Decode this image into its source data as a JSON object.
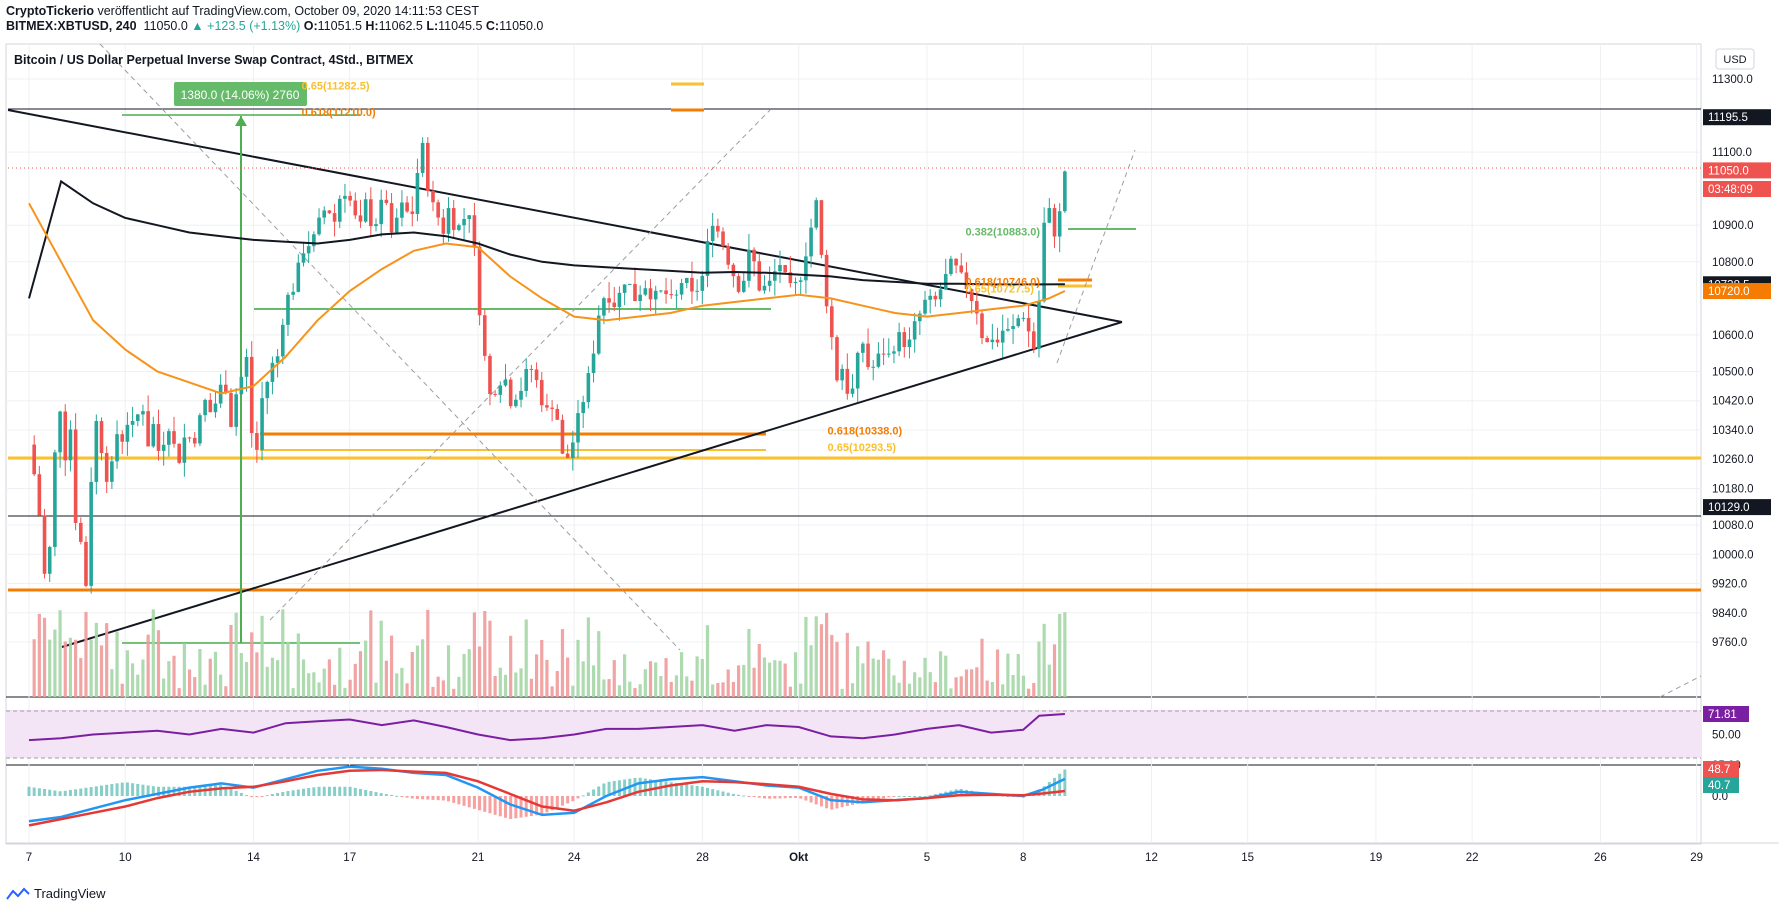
{
  "header": {
    "publisher": "CryptoTickerio",
    "published_text": "veröffentlicht auf TradingView.com, October 09, 2020 14:11:53 CEST",
    "symbol": "BITMEX:XBTUSD, 240",
    "last": "11050.0",
    "change": "▲ +123.5 (+1.13%)",
    "o_label": "O:",
    "o": "11051.5",
    "h_label": "H:",
    "h": "11062.5",
    "l_label": "L:",
    "l": "11045.5",
    "c_label": "C:",
    "c": "11050.0"
  },
  "chart_title": "Bitcoin / US Dollar Perpetual Inverse Swap Contract, 4Std., BITMEX",
  "currency_button": "USD",
  "footer_brand": "TradingView",
  "colors": {
    "up": "#26a69a",
    "down": "#ef5350",
    "ma_black": "#131722",
    "ma_orange": "#f7931a",
    "fib_orange": "#f57c00",
    "fib_yellow": "#fbc02d",
    "fib_green": "#66bb6a",
    "rsi": "#7b1fa2",
    "macd": "#2196f3",
    "signal": "#e53935"
  },
  "chart_data": {
    "type": "candlestick",
    "title": "Bitcoin / US Dollar Perpetual Inverse Swap Contract, 4Std., BITMEX",
    "x_tick_labels": [
      "7",
      "10",
      "14",
      "17",
      "21",
      "24",
      "28",
      "Okt",
      "5",
      "8",
      "12",
      "15",
      "19",
      "22",
      "26",
      "29"
    ],
    "y_tick_labels": [
      "11300.0",
      "11100.0",
      "10900.0",
      "10800.0",
      "10600.0",
      "10500.0",
      "10420.0",
      "10340.0",
      "10260.0",
      "10180.0",
      "10080.0",
      "10000.0",
      "9920.0",
      "9840.0",
      "9760.0"
    ],
    "y_ticks": [
      11300,
      11100,
      10900,
      10800,
      10600,
      10500,
      10420,
      10340,
      10260,
      10180,
      10080,
      10000,
      9920,
      9840,
      9760
    ],
    "price_badges": [
      {
        "label": "11195.5",
        "value": 11195.5,
        "bg": "#131722"
      },
      {
        "label": "11050.0",
        "value": 11050.0,
        "bg": "#ef5350"
      },
      {
        "label": "03:48:09",
        "value": 11000,
        "bg": "#ef5350"
      },
      {
        "label": "10738.5",
        "value": 10738.5,
        "bg": "#131722"
      },
      {
        "label": "10720.0",
        "value": 10720.0,
        "bg": "#f57c00"
      },
      {
        "label": "10129.0",
        "value": 10129.0,
        "bg": "#131722"
      }
    ],
    "price_path": [
      [
        7,
        10300
      ],
      [
        7.2,
        10200
      ],
      [
        7.4,
        10050
      ],
      [
        7.55,
        9860
      ],
      [
        7.7,
        10100
      ],
      [
        7.85,
        10340
      ],
      [
        8.0,
        10420
      ],
      [
        8.15,
        10250
      ],
      [
        8.3,
        10350
      ],
      [
        8.45,
        10100
      ],
      [
        8.6,
        10050
      ],
      [
        8.75,
        9870
      ],
      [
        8.9,
        10150
      ],
      [
        9.05,
        10380
      ],
      [
        9.2,
        10320
      ],
      [
        9.35,
        10250
      ],
      [
        9.5,
        10180
      ],
      [
        9.65,
        10280
      ],
      [
        9.8,
        10360
      ],
      [
        9.95,
        10300
      ],
      [
        10.1,
        10380
      ],
      [
        10.3,
        10330
      ],
      [
        10.5,
        10440
      ],
      [
        10.7,
        10300
      ],
      [
        10.9,
        10360
      ],
      [
        11.1,
        10250
      ],
      [
        11.3,
        10380
      ],
      [
        11.5,
        10300
      ],
      [
        11.7,
        10260
      ],
      [
        11.9,
        10340
      ],
      [
        12.1,
        10300
      ],
      [
        12.3,
        10360
      ],
      [
        12.5,
        10420
      ],
      [
        12.7,
        10380
      ],
      [
        12.9,
        10440
      ],
      [
        13.1,
        10480
      ],
      [
        13.3,
        10360
      ],
      [
        13.5,
        10460
      ],
      [
        13.7,
        10500
      ],
      [
        13.85,
        10560
      ],
      [
        13.95,
        10320
      ],
      [
        14.1,
        10280
      ],
      [
        14.25,
        10420
      ],
      [
        14.45,
        10480
      ],
      [
        14.6,
        10520
      ],
      [
        14.75,
        10540
      ],
      [
        14.9,
        10640
      ],
      [
        15.05,
        10700
      ],
      [
        15.2,
        10720
      ],
      [
        15.35,
        10760
      ],
      [
        15.5,
        10820
      ],
      [
        15.65,
        10860
      ],
      [
        15.8,
        10840
      ],
      [
        15.95,
        10880
      ],
      [
        16.1,
        10920
      ],
      [
        16.3,
        10960
      ],
      [
        16.5,
        10900
      ],
      [
        16.7,
        10980
      ],
      [
        16.9,
        11000
      ],
      [
        17.1,
        10940
      ],
      [
        17.3,
        10880
      ],
      [
        17.5,
        10960
      ],
      [
        17.7,
        10900
      ],
      [
        17.9,
        10920
      ],
      [
        18.1,
        11000
      ],
      [
        18.3,
        10860
      ],
      [
        18.5,
        10930
      ],
      [
        18.7,
        10960
      ],
      [
        18.9,
        10900
      ],
      [
        19.1,
        11040
      ],
      [
        19.3,
        11120
      ],
      [
        19.5,
        10960
      ],
      [
        19.7,
        10940
      ],
      [
        19.9,
        10880
      ],
      [
        20.1,
        10950
      ],
      [
        20.3,
        10890
      ],
      [
        20.5,
        10900
      ],
      [
        20.7,
        10960
      ],
      [
        20.9,
        10820
      ],
      [
        21.0,
        10700
      ],
      [
        21.15,
        10620
      ],
      [
        21.3,
        10420
      ],
      [
        21.45,
        10450
      ],
      [
        21.6,
        10460
      ],
      [
        21.8,
        10500
      ],
      [
        22.0,
        10420
      ],
      [
        22.2,
        10440
      ],
      [
        22.4,
        10460
      ],
      [
        22.6,
        10520
      ],
      [
        22.8,
        10480
      ],
      [
        23.0,
        10420
      ],
      [
        23.2,
        10380
      ],
      [
        23.4,
        10440
      ],
      [
        23.55,
        10300
      ],
      [
        23.7,
        10240
      ],
      [
        23.85,
        10280
      ],
      [
        24.0,
        10320
      ],
      [
        24.2,
        10400
      ],
      [
        24.4,
        10460
      ],
      [
        24.6,
        10560
      ],
      [
        24.8,
        10680
      ],
      [
        25.0,
        10720
      ],
      [
        25.3,
        10680
      ],
      [
        25.6,
        10760
      ],
      [
        25.9,
        10700
      ],
      [
        26.2,
        10740
      ],
      [
        26.5,
        10700
      ],
      [
        26.8,
        10720
      ],
      [
        27.1,
        10680
      ],
      [
        27.4,
        10760
      ],
      [
        27.7,
        10700
      ],
      [
        28.0,
        10760
      ],
      [
        28.3,
        10920
      ],
      [
        28.6,
        10860
      ],
      [
        28.9,
        10780
      ],
      [
        29.2,
        10720
      ],
      [
        29.5,
        10840
      ],
      [
        29.8,
        10720
      ],
      [
        30.1,
        10740
      ],
      [
        30.4,
        10800
      ],
      [
        30.7,
        10720
      ],
      [
        31.0,
        10740
      ],
      [
        31.3,
        10860
      ],
      [
        31.6,
        10980
      ],
      [
        31.75,
        10750
      ],
      [
        31.9,
        10680
      ],
      [
        32.05,
        10580
      ],
      [
        32.2,
        10480
      ],
      [
        32.4,
        10520
      ],
      [
        32.6,
        10400
      ],
      [
        32.8,
        10520
      ],
      [
        33.0,
        10580
      ],
      [
        33.2,
        10500
      ],
      [
        33.4,
        10520
      ],
      [
        33.6,
        10560
      ],
      [
        33.8,
        10540
      ],
      [
        34.0,
        10580
      ],
      [
        34.2,
        10600
      ],
      [
        34.4,
        10560
      ],
      [
        34.6,
        10620
      ],
      [
        34.8,
        10660
      ],
      [
        35.0,
        10700
      ],
      [
        35.2,
        10680
      ],
      [
        35.4,
        10720
      ],
      [
        35.6,
        10760
      ],
      [
        35.8,
        10800
      ],
      [
        36.0,
        10760
      ],
      [
        36.2,
        10740
      ],
      [
        36.4,
        10700
      ],
      [
        36.6,
        10660
      ],
      [
        36.8,
        10560
      ],
      [
        37.0,
        10600
      ],
      [
        37.2,
        10580
      ],
      [
        37.4,
        10620
      ],
      [
        37.6,
        10600
      ],
      [
        37.8,
        10640
      ],
      [
        38.0,
        10660
      ],
      [
        38.2,
        10600
      ],
      [
        38.35,
        10560
      ],
      [
        38.5,
        10700
      ],
      [
        38.65,
        10900
      ],
      [
        38.8,
        10940
      ],
      [
        38.95,
        10880
      ],
      [
        39.1,
        10900
      ],
      [
        39.3,
        11050
      ]
    ],
    "ma200": [
      [
        7,
        10700
      ],
      [
        8,
        11020
      ],
      [
        9,
        10960
      ],
      [
        10,
        10920
      ],
      [
        11,
        10900
      ],
      [
        12,
        10880
      ],
      [
        13,
        10870
      ],
      [
        14,
        10860
      ],
      [
        15,
        10855
      ],
      [
        16,
        10850
      ],
      [
        17,
        10860
      ],
      [
        18,
        10875
      ],
      [
        19,
        10880
      ],
      [
        20,
        10870
      ],
      [
        21,
        10850
      ],
      [
        22,
        10820
      ],
      [
        23,
        10800
      ],
      [
        24,
        10790
      ],
      [
        25,
        10785
      ],
      [
        26,
        10780
      ],
      [
        27,
        10775
      ],
      [
        28,
        10770
      ],
      [
        29,
        10772
      ],
      [
        30,
        10770
      ],
      [
        31,
        10765
      ],
      [
        32,
        10760
      ],
      [
        33,
        10750
      ],
      [
        34,
        10745
      ],
      [
        35,
        10740
      ],
      [
        36,
        10740
      ],
      [
        37,
        10738
      ],
      [
        38,
        10738
      ],
      [
        39.3,
        10738.5
      ]
    ],
    "ma50": [
      [
        7,
        10960
      ],
      [
        8,
        10800
      ],
      [
        9,
        10640
      ],
      [
        10,
        10560
      ],
      [
        11,
        10500
      ],
      [
        12,
        10470
      ],
      [
        13,
        10440
      ],
      [
        14,
        10460
      ],
      [
        15,
        10540
      ],
      [
        16,
        10640
      ],
      [
        17,
        10720
      ],
      [
        18,
        10780
      ],
      [
        19,
        10830
      ],
      [
        20,
        10850
      ],
      [
        21,
        10840
      ],
      [
        22,
        10760
      ],
      [
        23,
        10700
      ],
      [
        24,
        10650
      ],
      [
        25,
        10640
      ],
      [
        26,
        10650
      ],
      [
        27,
        10660
      ],
      [
        28,
        10680
      ],
      [
        29,
        10690
      ],
      [
        30,
        10700
      ],
      [
        31,
        10710
      ],
      [
        32,
        10700
      ],
      [
        33,
        10680
      ],
      [
        34,
        10660
      ],
      [
        35,
        10650
      ],
      [
        36,
        10660
      ],
      [
        37,
        10670
      ],
      [
        38,
        10680
      ],
      [
        38.8,
        10700
      ],
      [
        39.3,
        10720
      ]
    ],
    "rsi": [
      [
        7,
        44
      ],
      [
        8,
        46
      ],
      [
        9,
        50
      ],
      [
        10,
        52
      ],
      [
        11,
        54
      ],
      [
        12,
        50
      ],
      [
        13,
        56
      ],
      [
        14,
        52
      ],
      [
        15,
        62
      ],
      [
        16,
        64
      ],
      [
        17,
        66
      ],
      [
        18,
        60
      ],
      [
        19,
        65
      ],
      [
        20,
        58
      ],
      [
        21,
        50
      ],
      [
        22,
        44
      ],
      [
        23,
        46
      ],
      [
        24,
        50
      ],
      [
        25,
        56
      ],
      [
        26,
        56
      ],
      [
        27,
        58
      ],
      [
        28,
        60
      ],
      [
        29,
        54
      ],
      [
        30,
        60
      ],
      [
        31,
        58
      ],
      [
        32,
        48
      ],
      [
        33,
        46
      ],
      [
        34,
        50
      ],
      [
        35,
        56
      ],
      [
        36,
        60
      ],
      [
        37,
        52
      ],
      [
        38,
        55
      ],
      [
        38.5,
        70
      ],
      [
        39.3,
        71.81
      ]
    ],
    "rsi_label": "71.81",
    "rsi_ticks": [
      "50.00",
      "25.00"
    ],
    "macd": [
      [
        7,
        -60
      ],
      [
        8,
        -50
      ],
      [
        9,
        -30
      ],
      [
        10,
        -10
      ],
      [
        11,
        5
      ],
      [
        12,
        20
      ],
      [
        13,
        30
      ],
      [
        14,
        20
      ],
      [
        15,
        40
      ],
      [
        16,
        60
      ],
      [
        17,
        70
      ],
      [
        18,
        65
      ],
      [
        19,
        55
      ],
      [
        20,
        50
      ],
      [
        21,
        20
      ],
      [
        22,
        -20
      ],
      [
        23,
        -45
      ],
      [
        24,
        -40
      ],
      [
        25,
        0
      ],
      [
        26,
        30
      ],
      [
        27,
        40
      ],
      [
        28,
        45
      ],
      [
        29,
        35
      ],
      [
        30,
        25
      ],
      [
        31,
        20
      ],
      [
        32,
        -10
      ],
      [
        33,
        -15
      ],
      [
        34,
        -10
      ],
      [
        35,
        -5
      ],
      [
        36,
        10
      ],
      [
        37,
        5
      ],
      [
        38,
        0
      ],
      [
        38.6,
        15
      ],
      [
        39.3,
        40.7
      ]
    ],
    "macd_signal": [
      [
        7,
        -70
      ],
      [
        8,
        -55
      ],
      [
        9,
        -40
      ],
      [
        10,
        -25
      ],
      [
        11,
        -5
      ],
      [
        12,
        10
      ],
      [
        13,
        18
      ],
      [
        14,
        22
      ],
      [
        15,
        35
      ],
      [
        16,
        50
      ],
      [
        17,
        60
      ],
      [
        18,
        62
      ],
      [
        19,
        58
      ],
      [
        20,
        55
      ],
      [
        21,
        35
      ],
      [
        22,
        5
      ],
      [
        23,
        -25
      ],
      [
        24,
        -35
      ],
      [
        25,
        -15
      ],
      [
        26,
        10
      ],
      [
        27,
        25
      ],
      [
        28,
        35
      ],
      [
        29,
        33
      ],
      [
        30,
        28
      ],
      [
        31,
        22
      ],
      [
        32,
        5
      ],
      [
        33,
        -8
      ],
      [
        34,
        -10
      ],
      [
        35,
        -5
      ],
      [
        36,
        2
      ],
      [
        37,
        3
      ],
      [
        38,
        2
      ],
      [
        38.6,
        6
      ],
      [
        39.3,
        12
      ]
    ],
    "macd_badges": [
      "48.7",
      "40.7"
    ],
    "macd_ticks": [
      "0.0"
    ],
    "fib_labels": [
      {
        "text": "0.65(11282.5)",
        "value": 11282.5,
        "x_day": 15.5,
        "color": "#fbc02d"
      },
      {
        "text": "0.618(11210.0)",
        "value": 11210.0,
        "x_day": 15.5,
        "color": "#f57c00"
      },
      {
        "text": "0.382(10883.0)",
        "value": 10883.0,
        "x_day": 36.2,
        "color": "#66bb6a"
      },
      {
        "text": "0.618(10746.0)",
        "value": 10746.0,
        "x_day": 36.2,
        "color": "#f57c00"
      },
      {
        "text": "0.65(10727.5)",
        "value": 10727.5,
        "x_day": 36.2,
        "color": "#fbc02d"
      },
      {
        "text": "0.618(10338.0)",
        "value": 10338.0,
        "x_day": 31.9,
        "color": "#f57c00"
      },
      {
        "text": "0.65(10293.5)",
        "value": 10293.5,
        "x_day": 31.9,
        "color": "#fbc02d"
      }
    ],
    "measure_box": "1380.0 (14.06%) 2760"
  }
}
